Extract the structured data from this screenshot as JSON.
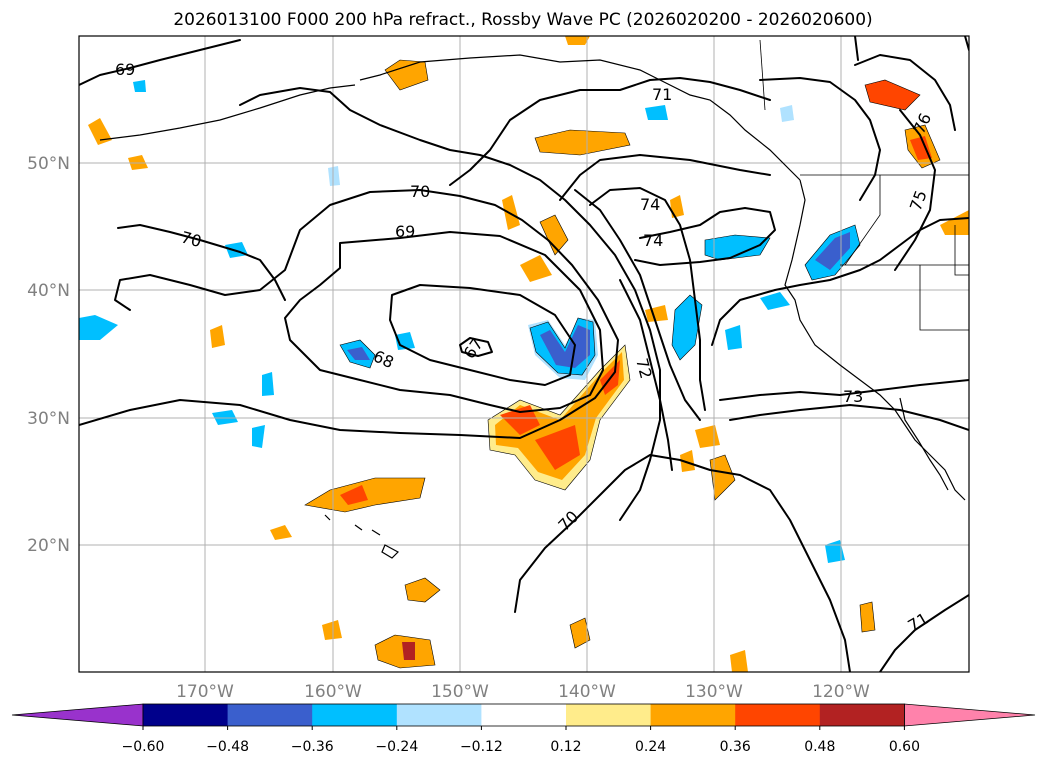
{
  "figure": {
    "title": "2026013100 F000 200 hPa refract., Rossby Wave PC (2026020200 - 2026020600)"
  },
  "axes": {
    "lon_ticks": [
      "170°W",
      "160°W",
      "150°W",
      "140°W",
      "130°W",
      "120°W"
    ],
    "lat_ticks": [
      "50°N",
      "40°N",
      "30°N",
      "20°N"
    ],
    "lon_range": [
      -180,
      -110
    ],
    "lat_range": [
      10,
      60
    ],
    "grid": true
  },
  "colorbar": {
    "tick_labels": [
      "−0.60",
      "−0.48",
      "−0.36",
      "−0.24",
      "−0.12",
      "0.12",
      "0.24",
      "0.36",
      "0.48",
      "0.60"
    ],
    "levels": [
      -0.6,
      -0.48,
      -0.36,
      -0.24,
      -0.12,
      0.12,
      0.24,
      0.36,
      0.48,
      0.6
    ],
    "colors": [
      "#9932cc",
      "#00008b",
      "#3a5fcd",
      "#00bfff",
      "#b0e2ff",
      "#ffffff",
      "#ffec8b",
      "#ffa500",
      "#ff4500",
      "#b22222",
      "#ff82ab"
    ],
    "extend": "both"
  },
  "contour_labels": [
    {
      "text": "69"
    },
    {
      "text": "71"
    },
    {
      "text": "76"
    },
    {
      "text": "75"
    },
    {
      "text": "70"
    },
    {
      "text": "70"
    },
    {
      "text": "69"
    },
    {
      "text": "74"
    },
    {
      "text": "74"
    },
    {
      "text": "68"
    },
    {
      "text": "67"
    },
    {
      "text": "72"
    },
    {
      "text": "73"
    },
    {
      "text": "70"
    },
    {
      "text": "71"
    }
  ]
}
